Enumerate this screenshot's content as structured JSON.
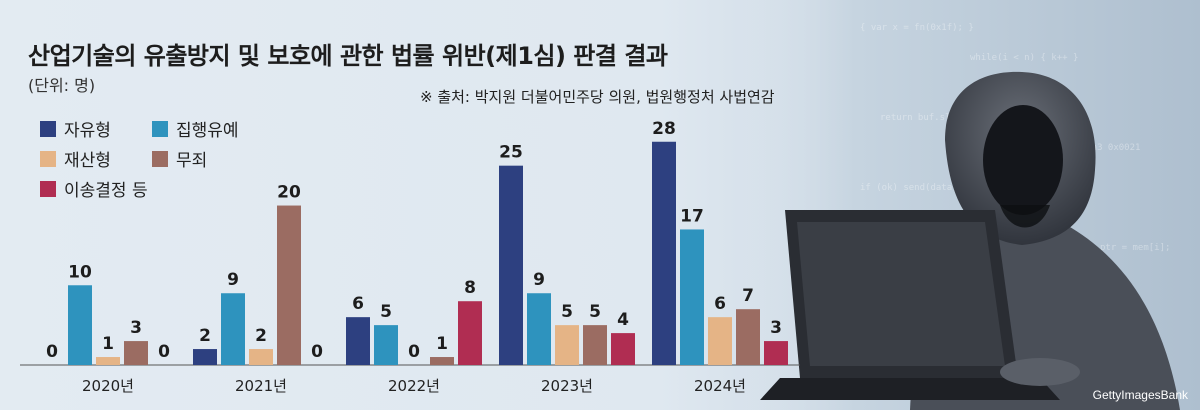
{
  "header": {
    "title": "산업기술의 유출방지 및 보호에 관한 법률 위반(제1심) 판결 결과",
    "unit": "(단위: 명)",
    "source": "※ 출처: 박지원 더불어민주당 의원, 법원행정처 사법연감"
  },
  "credit": "GettyImagesBank",
  "photo_icon": "hooded-hacker-with-laptop",
  "chart_data": {
    "type": "bar",
    "title": "산업기술의 유출방지 및 보호에 관한 법률 위반(제1심) 판결 결과",
    "unit": "(단위: 명)",
    "categories": [
      "2020년",
      "2021년",
      "2022년",
      "2023년",
      "2024년"
    ],
    "series": [
      {
        "name": "자유형",
        "color": "#2d4080",
        "values": [
          0,
          2,
          6,
          25,
          28
        ]
      },
      {
        "name": "집행유예",
        "color": "#2e93be",
        "values": [
          10,
          9,
          5,
          9,
          17
        ]
      },
      {
        "name": "재산형",
        "color": "#e5b486",
        "values": [
          1,
          2,
          0,
          5,
          6
        ]
      },
      {
        "name": "무죄",
        "color": "#9b6c62",
        "values": [
          3,
          20,
          1,
          5,
          7
        ]
      },
      {
        "name": "이송결정 등",
        "color": "#b02d52",
        "values": [
          0,
          0,
          8,
          4,
          3
        ]
      }
    ],
    "ylim": [
      0,
      30
    ],
    "grid": false,
    "legend_position": "top-left"
  }
}
